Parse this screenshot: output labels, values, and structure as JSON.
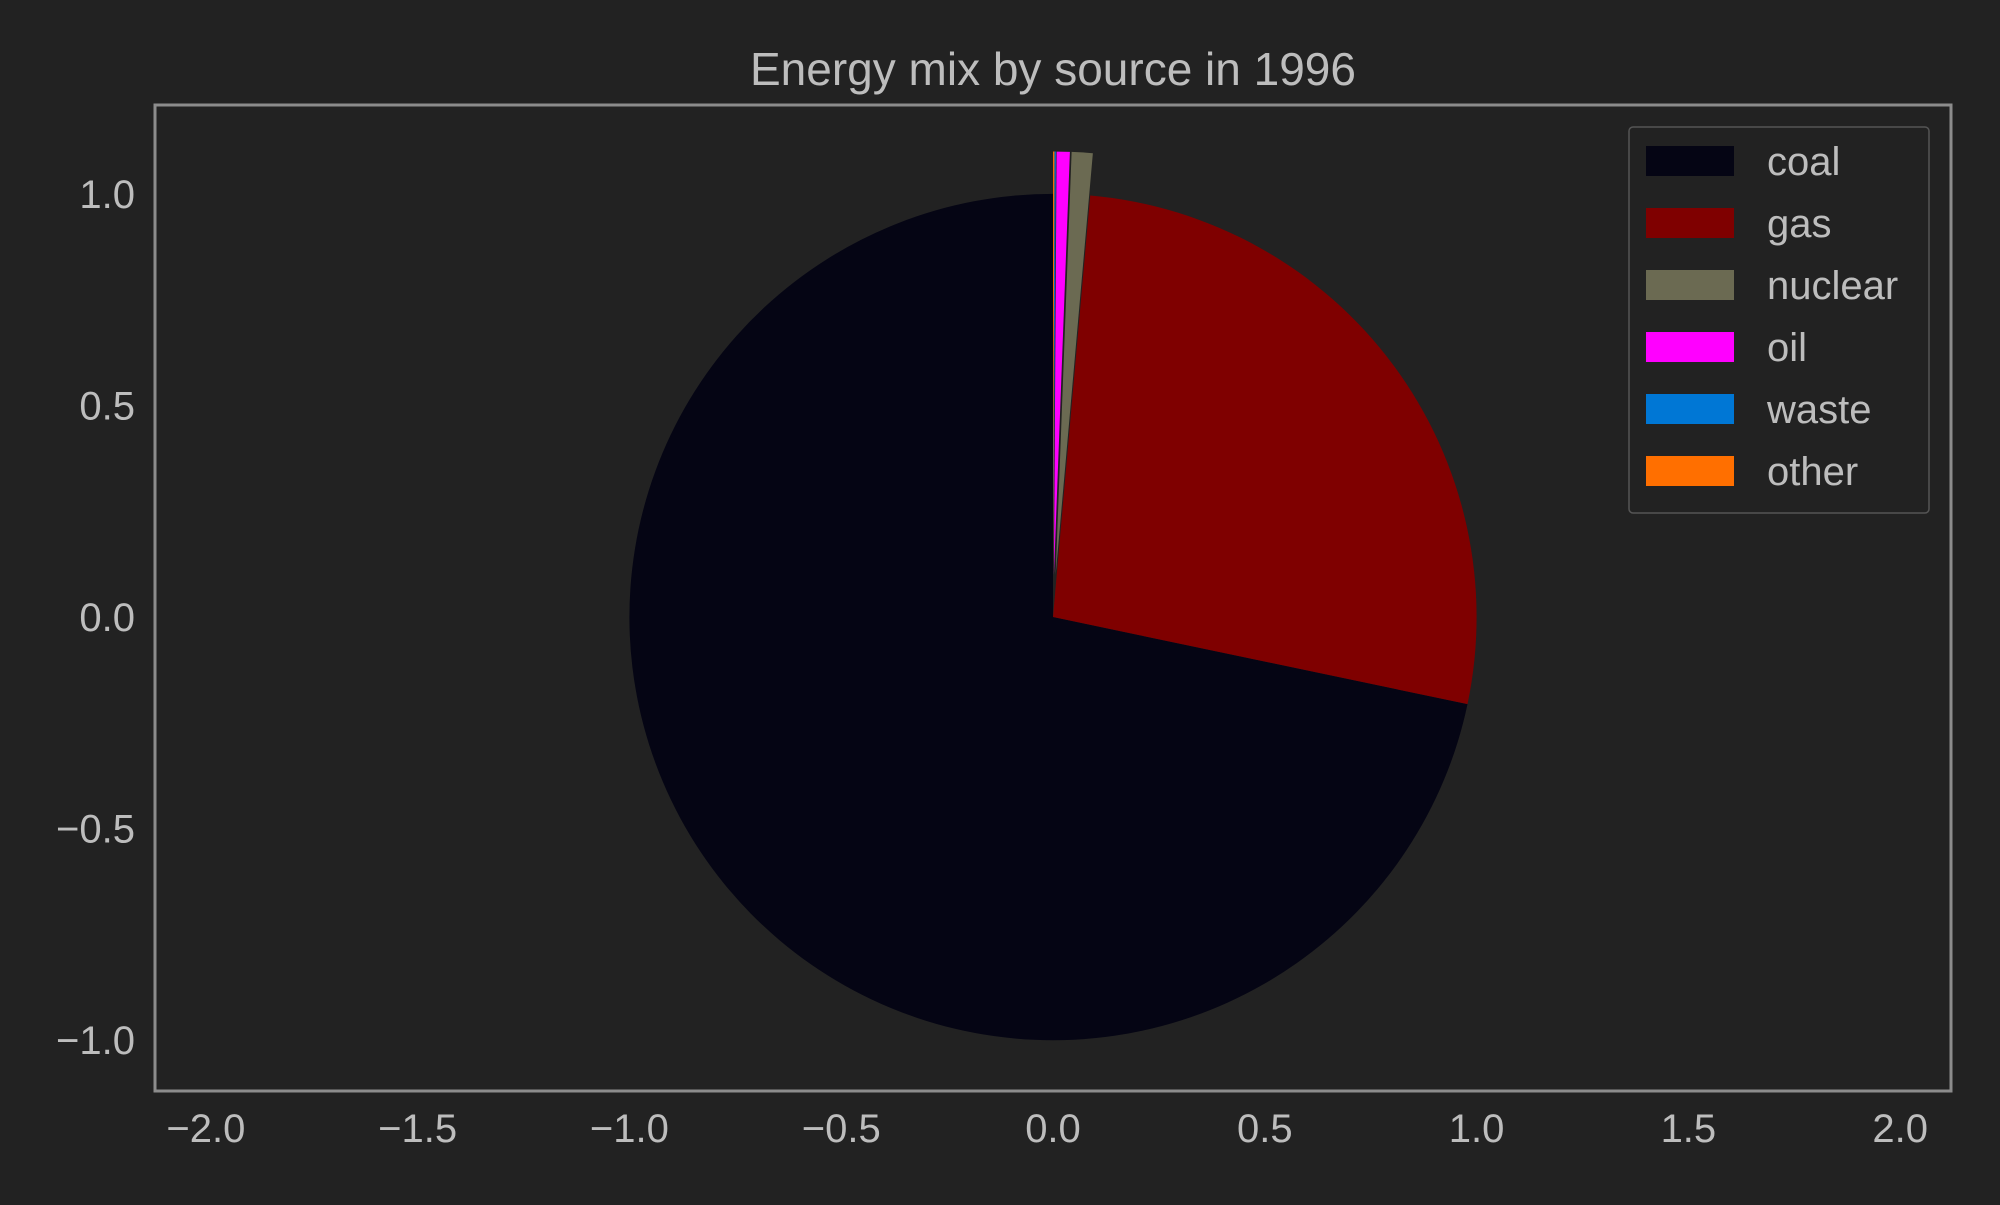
{
  "chart_data": {
    "type": "pie",
    "title": "Energy mix by source in 1996",
    "xlabel": "",
    "ylabel": "",
    "xlim": [
      -2.12,
      2.12
    ],
    "ylim": [
      -1.12,
      1.21
    ],
    "xticks": [
      "−2.0",
      "−1.5",
      "−1.0",
      "−0.5",
      "0.0",
      "0.5",
      "1.0",
      "1.5",
      "2.0"
    ],
    "xtick_values": [
      -2.0,
      -1.5,
      -1.0,
      -0.5,
      0.0,
      0.5,
      1.0,
      1.5,
      2.0
    ],
    "yticks": [
      "1.0",
      "0.5",
      "0.0",
      "−0.5",
      "−1.0"
    ],
    "ytick_values": [
      1.0,
      0.5,
      0.0,
      -0.5,
      -1.0
    ],
    "grid": false,
    "legend_position": "top-right",
    "slices": [
      {
        "label": "coal",
        "value": 71.7,
        "color": "#050514",
        "explode": 0.0
      },
      {
        "label": "gas",
        "value": 26.9,
        "color": "#7f0000",
        "explode": 0.0
      },
      {
        "label": "nuclear",
        "value": 0.8,
        "color": "#6b6a52",
        "explode": 0.1
      },
      {
        "label": "oil",
        "value": 0.5,
        "color": "#ff00ff",
        "explode": 0.1
      },
      {
        "label": "waste",
        "value": 0.05,
        "color": "#0077d5",
        "explode": 0.1
      },
      {
        "label": "other",
        "value": 0.05,
        "color": "#ff6f00",
        "explode": 0.1
      }
    ]
  },
  "colors": {
    "background": "#222222",
    "axes_border": "#8c8c8c",
    "text": "#bdbdbd"
  }
}
